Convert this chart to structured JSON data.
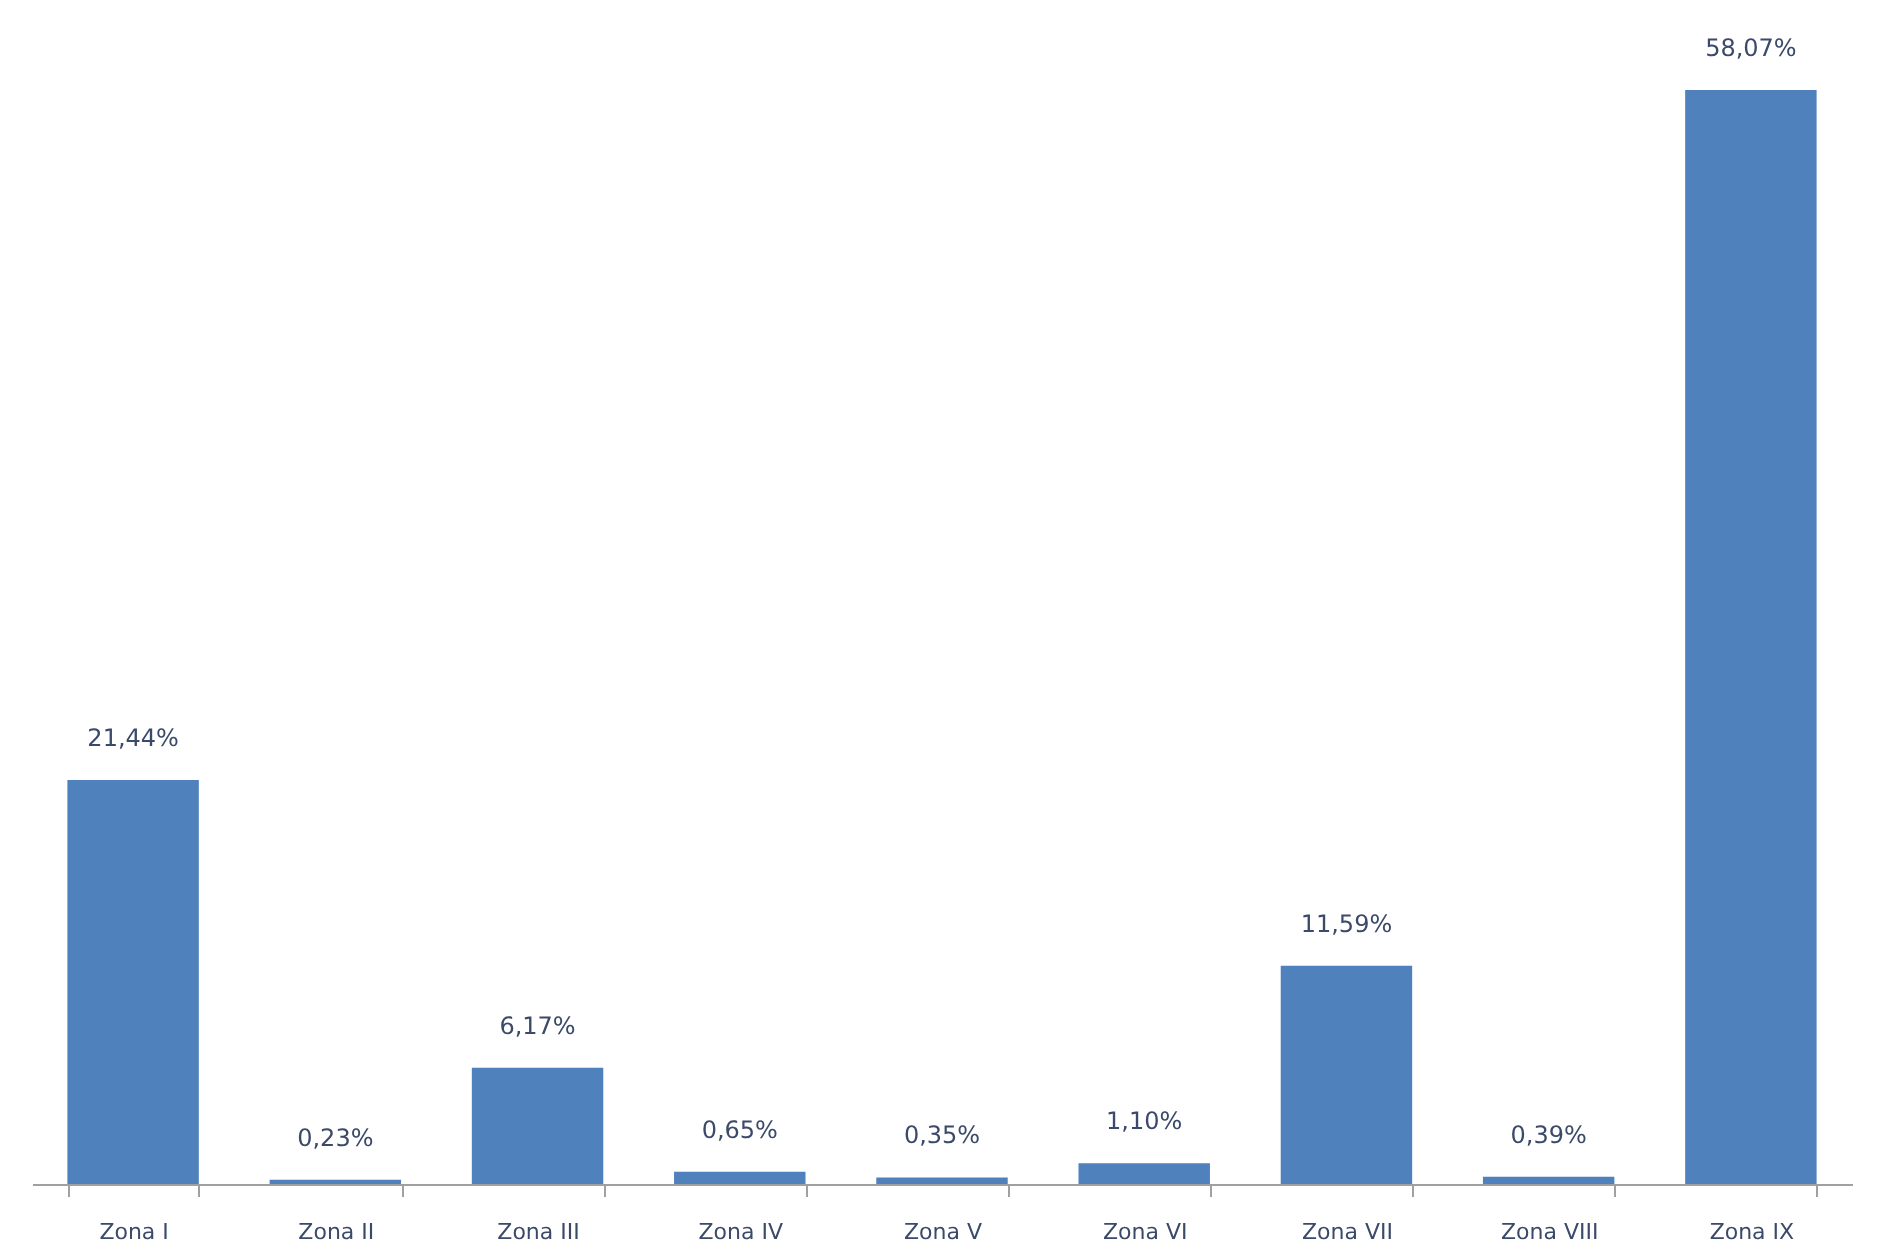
{
  "chart_data": {
    "type": "bar",
    "categories": [
      "Zona I",
      "Zona II",
      "Zona III",
      "Zona IV",
      "Zona V",
      "Zona VI",
      "Zona VII",
      "Zona VIII",
      "Zona IX"
    ],
    "values": [
      21.44,
      0.23,
      6.17,
      0.65,
      0.35,
      1.1,
      11.59,
      0.39,
      58.07
    ],
    "value_labels": [
      "21,44%",
      "0,23%",
      "6,17%",
      "0,65%",
      "0,35%",
      "1,10%",
      "11,59%",
      "0,39%",
      "58,07%"
    ],
    "color": "#4f81bd",
    "tick_labels": "x"
  }
}
